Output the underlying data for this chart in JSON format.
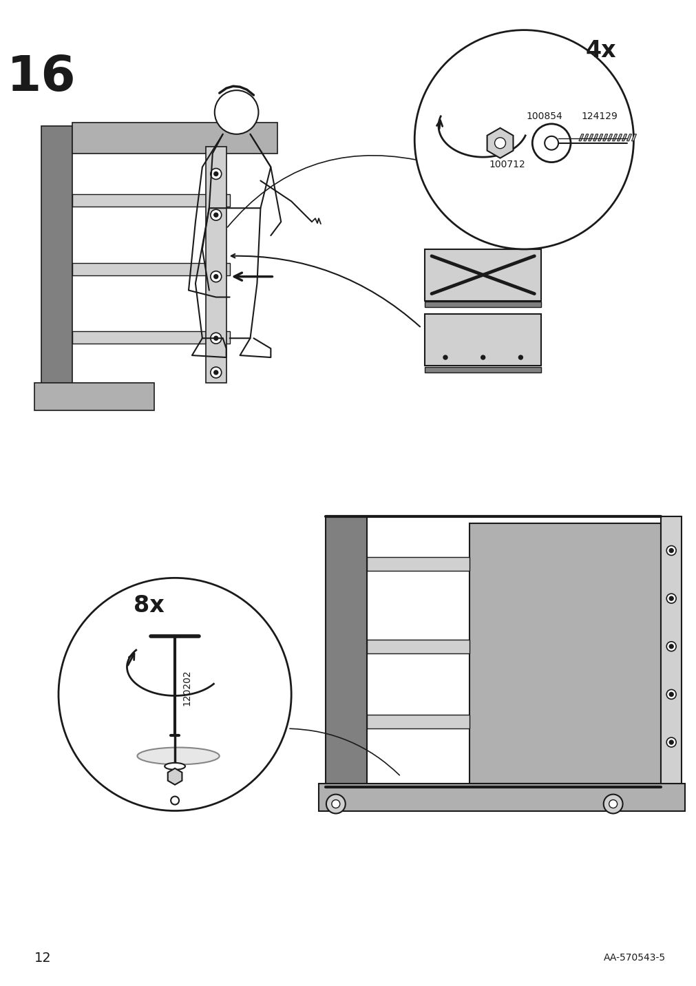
{
  "background_color": "#ffffff",
  "page_number": "12",
  "document_id": "AA-570543-5",
  "step_number": "16",
  "step_number_fontsize": 52,
  "page_num_fontsize": 14,
  "doc_id_fontsize": 10,
  "quantity_1": "4x",
  "quantity_2": "8x",
  "part_ids": [
    "100854",
    "124129",
    "100712",
    "120202"
  ],
  "text_color": "#1a1a1a",
  "line_color": "#1a1a1a",
  "light_gray": "#d0d0d0",
  "medium_gray": "#b0b0b0",
  "dark_gray": "#808080"
}
